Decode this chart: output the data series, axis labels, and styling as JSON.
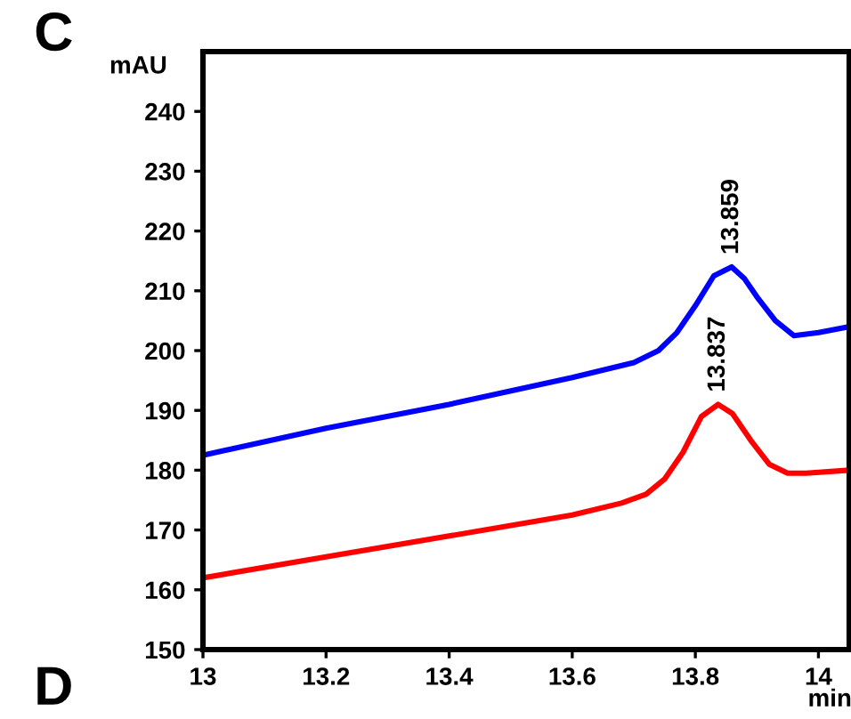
{
  "chart_data": {
    "type": "line",
    "xlabel": "min",
    "ylabel": "mAU",
    "annotations": [
      "C",
      "D",
      {
        "text": "13.859",
        "x": 13.859,
        "y": 214
      },
      {
        "text": "13.837",
        "x": 13.837,
        "y": 191
      }
    ],
    "xlim": [
      13,
      14.05
    ],
    "ylim": [
      150,
      250
    ],
    "xticks": [
      13,
      13.2,
      13.4,
      13.6,
      13.8,
      14
    ],
    "yticks": [
      150,
      160,
      170,
      180,
      190,
      200,
      210,
      220,
      230,
      240
    ],
    "grid": false,
    "legend": false,
    "marker": "none",
    "line_style": "solid",
    "series": [
      {
        "color": "#0000ff",
        "x": [
          13,
          13.2,
          13.4,
          13.6,
          13.7,
          13.74,
          13.77,
          13.8,
          13.83,
          13.859,
          13.88,
          13.9,
          13.93,
          13.96,
          14.0,
          14.05
        ],
        "values": [
          182.5,
          187,
          191,
          195.5,
          198,
          200,
          203,
          207.5,
          212.5,
          214,
          212,
          209,
          205,
          202.5,
          203,
          204
        ]
      },
      {
        "color": "#ff0000",
        "x": [
          13,
          13.2,
          13.4,
          13.6,
          13.68,
          13.72,
          13.75,
          13.78,
          13.81,
          13.837,
          13.86,
          13.89,
          13.92,
          13.95,
          13.98,
          14.05
        ],
        "values": [
          162,
          165.5,
          169,
          172.5,
          174.5,
          176,
          178.5,
          183,
          189,
          191,
          189.5,
          185,
          181,
          179.5,
          179.5,
          180
        ]
      }
    ]
  }
}
